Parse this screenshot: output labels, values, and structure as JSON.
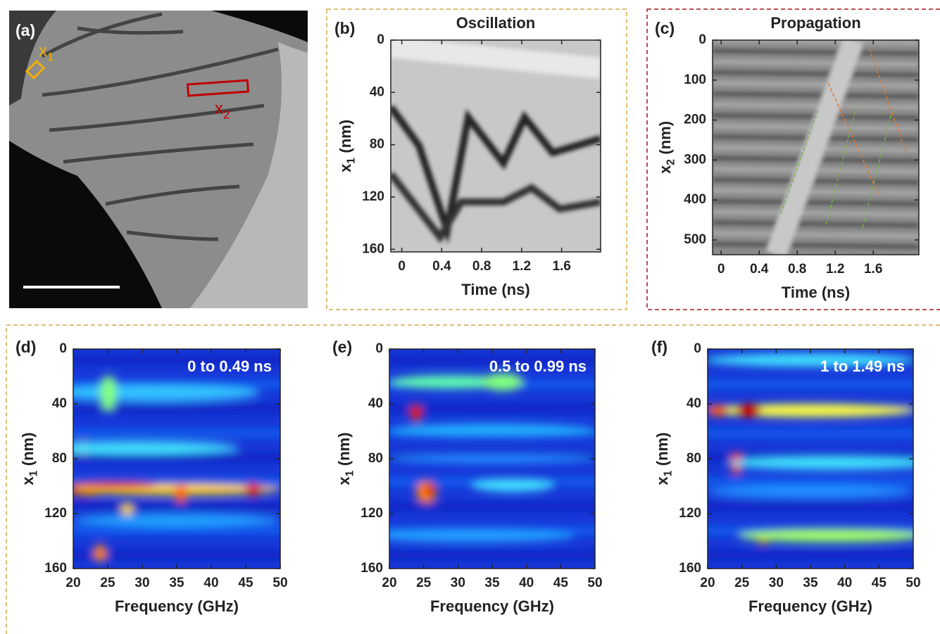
{
  "chart_data": [
    {
      "type": "image",
      "label": "(a)",
      "annotations": [
        {
          "text": "x",
          "sub": "1",
          "color": "#f0b000"
        },
        {
          "text": "x",
          "sub": "2",
          "color": "#c00000"
        }
      ]
    },
    {
      "type": "heatmap",
      "label": "(b)",
      "title": "Oscillation",
      "xlabel": "Time (ns)",
      "ylabel": {
        "text": "x",
        "sub": "1",
        "unit": "(nm)"
      },
      "xlim": [
        -0.11,
        1.99
      ],
      "xticks": [
        0,
        0.4,
        0.8,
        1.2,
        1.6
      ],
      "ylim": [
        162,
        0
      ],
      "yticks": [
        0,
        40,
        80,
        120,
        160
      ]
    },
    {
      "type": "heatmap",
      "label": "(c)",
      "title": "Propagation",
      "xlabel": "Time (ns)",
      "ylabel": {
        "text": "x",
        "sub": "2",
        "unit": "(nm)"
      },
      "xlim": [
        -0.09,
        2.08
      ],
      "xticks": [
        0,
        0.4,
        0.8,
        1.2,
        1.6
      ],
      "ylim": [
        537,
        0
      ],
      "yticks": [
        0,
        100,
        200,
        300,
        400,
        500
      ]
    },
    {
      "type": "heatmap",
      "label": "(d)",
      "annotation": "0 to 0.49 ns",
      "xlabel": "Frequency (GHz)",
      "ylabel": {
        "text": "x",
        "sub": "1",
        "unit": "(nm)"
      },
      "xlim": [
        20,
        50
      ],
      "xticks": [
        20,
        25,
        30,
        35,
        40,
        45,
        50
      ],
      "ylim": [
        160,
        0
      ],
      "yticks": [
        0,
        40,
        80,
        120,
        160
      ]
    },
    {
      "type": "heatmap",
      "label": "(e)",
      "annotation": "0.5 to 0.99 ns",
      "xlabel": "Frequency (GHz)",
      "ylabel": {
        "text": "x",
        "sub": "1",
        "unit": "(nm)"
      },
      "xlim": [
        20,
        50
      ],
      "xticks": [
        20,
        25,
        30,
        35,
        40,
        45,
        50
      ],
      "ylim": [
        160,
        0
      ],
      "yticks": [
        0,
        40,
        80,
        120,
        160
      ]
    },
    {
      "type": "heatmap",
      "label": "(f)",
      "annotation": "1 to 1.49 ns",
      "xlabel": "Frequency (GHz)",
      "ylabel": {
        "text": "x",
        "sub": "1",
        "unit": "(nm)"
      },
      "xlim": [
        20,
        50
      ],
      "xticks": [
        20,
        25,
        30,
        35,
        40,
        45,
        50
      ],
      "ylim": [
        160,
        0
      ],
      "yticks": [
        0,
        40,
        80,
        120,
        160
      ]
    }
  ]
}
